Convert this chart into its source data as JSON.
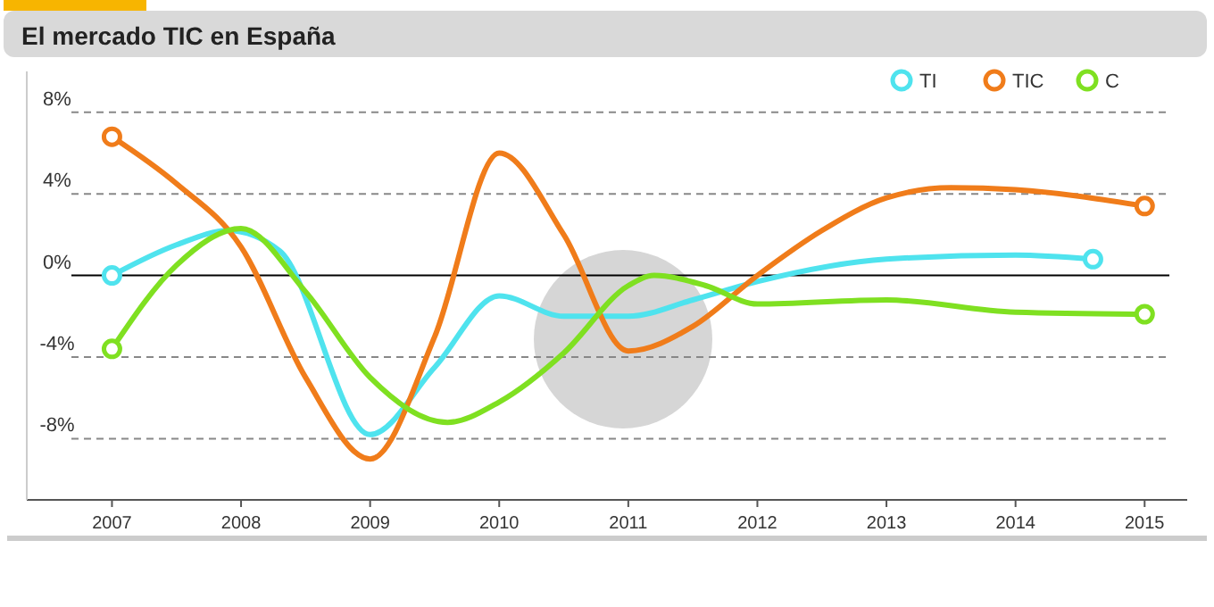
{
  "chart_data": {
    "type": "line",
    "title": "El mercado TIC en España",
    "xlim": [
      2006.34,
      2015.33
    ],
    "xticks": [
      2007,
      2008,
      2009,
      2010,
      2011,
      2012,
      2013,
      2014,
      2015
    ],
    "ylim": [
      -11,
      10
    ],
    "yticks": [
      {
        "value": -8,
        "label": "-8%"
      },
      {
        "value": -4,
        "label": "-4%"
      },
      {
        "value": 0,
        "label": "0%"
      },
      {
        "value": 4,
        "label": "4%"
      },
      {
        "value": 8,
        "label": "8%"
      }
    ],
    "grid": "y",
    "legend": "top right",
    "line_style": "solid",
    "series": [
      {
        "name": "TI",
        "color": "#4fe3ee",
        "x": [
          2007,
          2007.5,
          2007.9,
          2008.3,
          2009,
          2009.5,
          2010,
          2010.5,
          2011,
          2011.5,
          2012,
          2013,
          2014,
          2014.6
        ],
        "values": [
          0,
          1.5,
          2.2,
          1.2,
          -7.8,
          -4.5,
          -1,
          -2,
          -2,
          -1.2,
          -0.3,
          0.8,
          1,
          0.8
        ]
      },
      {
        "name": "TIC",
        "color": "#f07c1a",
        "x": [
          2007,
          2007.5,
          2008,
          2008.5,
          2009,
          2009.5,
          2010,
          2010.5,
          2011,
          2011.5,
          2012,
          2012.5,
          2013,
          2013.5,
          2014,
          2015
        ],
        "values": [
          6.8,
          4.5,
          1.4,
          -5,
          -9,
          -3,
          6,
          2,
          -3.7,
          -2.5,
          0,
          2.2,
          3.8,
          4.3,
          4.2,
          3.4
        ]
      },
      {
        "name": "C",
        "color": "#7fe021",
        "x": [
          2007,
          2007.5,
          2008,
          2008.5,
          2009,
          2009.6,
          2010,
          2010.5,
          2011,
          2011.2,
          2011.6,
          2012,
          2013,
          2014,
          2015
        ],
        "values": [
          -3.6,
          0.5,
          2.3,
          -0.8,
          -5,
          -7.2,
          -6.2,
          -3.8,
          -0.5,
          0,
          -0.5,
          -1.4,
          -1.2,
          -1.8,
          -1.9
        ]
      }
    ]
  }
}
